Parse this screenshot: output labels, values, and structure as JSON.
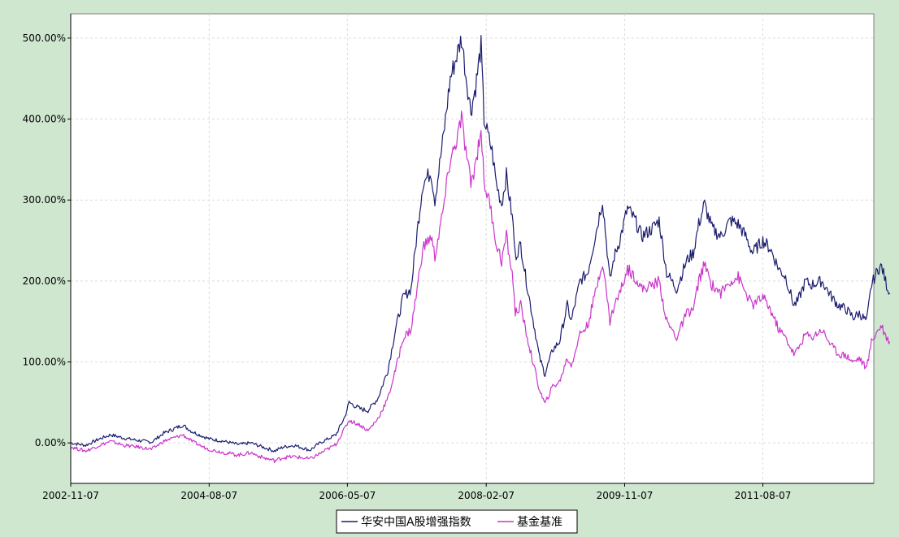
{
  "chart_data": {
    "type": "line",
    "title": "",
    "xlabel": "",
    "ylabel": "",
    "x_tick_labels": [
      "2002-11-07",
      "2004-08-07",
      "2006-05-07",
      "2008-02-07",
      "2009-11-07",
      "2011-08-07"
    ],
    "y_tick_labels": [
      "0.00%",
      "100.00%",
      "200.00%",
      "300.00%",
      "400.00%",
      "500.00%"
    ],
    "y_ticks": [
      0,
      100,
      200,
      300,
      400,
      500
    ],
    "ylim": [
      -50,
      530
    ],
    "xlim": [
      "2002-11-07",
      "2012-12-31"
    ],
    "grid": true,
    "legend_position": "bottom-center",
    "series": [
      {
        "name": "华安中国A股增强指数",
        "color": "#1b1c6e",
        "points": [
          [
            "2002-11-07",
            0
          ],
          [
            "2003-01-15",
            -3
          ],
          [
            "2003-03-20",
            5
          ],
          [
            "2003-05-10",
            10
          ],
          [
            "2003-07-10",
            6
          ],
          [
            "2003-09-15",
            3
          ],
          [
            "2003-11-15",
            1
          ],
          [
            "2004-01-10",
            12
          ],
          [
            "2004-04-07",
            22
          ],
          [
            "2004-05-20",
            14
          ],
          [
            "2004-07-10",
            8
          ],
          [
            "2004-08-07",
            5
          ],
          [
            "2004-10-15",
            2
          ],
          [
            "2004-12-20",
            -2
          ],
          [
            "2005-02-15",
            0
          ],
          [
            "2005-04-10",
            -5
          ],
          [
            "2005-06-05",
            -10
          ],
          [
            "2005-07-15",
            -5
          ],
          [
            "2005-09-05",
            -3
          ],
          [
            "2005-11-15",
            -9
          ],
          [
            "2006-01-01",
            0
          ],
          [
            "2006-03-15",
            10
          ],
          [
            "2006-04-25",
            32
          ],
          [
            "2006-05-15",
            50
          ],
          [
            "2006-07-05",
            42
          ],
          [
            "2006-08-10",
            40
          ],
          [
            "2006-09-25",
            55
          ],
          [
            "2006-11-10",
            90
          ],
          [
            "2006-12-15",
            140
          ],
          [
            "2007-01-20",
            180
          ],
          [
            "2007-02-25",
            190
          ],
          [
            "2007-03-25",
            260
          ],
          [
            "2007-04-20",
            320
          ],
          [
            "2007-05-28",
            335
          ],
          [
            "2007-06-15",
            300
          ],
          [
            "2007-07-25",
            380
          ],
          [
            "2007-08-25",
            450
          ],
          [
            "2007-09-15",
            470
          ],
          [
            "2007-10-16",
            500
          ],
          [
            "2007-11-05",
            455
          ],
          [
            "2007-11-28",
            410
          ],
          [
            "2007-12-20",
            440
          ],
          [
            "2008-01-14",
            490
          ],
          [
            "2008-01-28",
            400
          ],
          [
            "2008-02-15",
            380
          ],
          [
            "2008-03-05",
            360
          ],
          [
            "2008-03-25",
            320
          ],
          [
            "2008-04-18",
            295
          ],
          [
            "2008-05-10",
            330
          ],
          [
            "2008-06-10",
            270
          ],
          [
            "2008-06-20",
            230
          ],
          [
            "2008-07-15",
            245
          ],
          [
            "2008-08-10",
            200
          ],
          [
            "2008-09-18",
            140
          ],
          [
            "2008-10-10",
            105
          ],
          [
            "2008-11-04",
            85
          ],
          [
            "2008-12-10",
            115
          ],
          [
            "2009-01-10",
            125
          ],
          [
            "2009-02-15",
            170
          ],
          [
            "2009-03-05",
            150
          ],
          [
            "2009-04-15",
            200
          ],
          [
            "2009-05-20",
            210
          ],
          [
            "2009-06-20",
            250
          ],
          [
            "2009-07-28",
            300
          ],
          [
            "2009-08-31",
            200
          ],
          [
            "2009-09-20",
            230
          ],
          [
            "2009-10-15",
            250
          ],
          [
            "2009-11-20",
            290
          ],
          [
            "2009-12-25",
            275
          ],
          [
            "2010-01-25",
            255
          ],
          [
            "2010-03-15",
            265
          ],
          [
            "2010-04-15",
            275
          ],
          [
            "2010-05-20",
            210
          ],
          [
            "2010-07-05",
            190
          ],
          [
            "2010-08-20",
            225
          ],
          [
            "2010-09-20",
            235
          ],
          [
            "2010-10-15",
            270
          ],
          [
            "2010-11-10",
            295
          ],
          [
            "2010-12-15",
            265
          ],
          [
            "2011-01-25",
            255
          ],
          [
            "2011-03-10",
            275
          ],
          [
            "2011-04-15",
            270
          ],
          [
            "2011-05-20",
            255
          ],
          [
            "2011-06-20",
            235
          ],
          [
            "2011-08-07",
            250
          ],
          [
            "2011-09-10",
            240
          ],
          [
            "2011-10-20",
            215
          ],
          [
            "2011-11-20",
            205
          ],
          [
            "2011-12-28",
            170
          ],
          [
            "2012-01-15",
            175
          ],
          [
            "2012-02-20",
            200
          ],
          [
            "2012-03-15",
            195
          ],
          [
            "2012-05-05",
            200
          ],
          [
            "2012-06-20",
            180
          ],
          [
            "2012-07-20",
            170
          ],
          [
            "2012-08-25",
            165
          ],
          [
            "2012-09-28",
            155
          ],
          [
            "2012-10-25",
            160
          ],
          [
            "2012-11-28",
            150
          ],
          [
            "2012-12-20",
            195
          ],
          [
            "2013-01-20",
            215
          ],
          [
            "2013-02-05",
            218
          ],
          [
            "2013-02-28",
            195
          ],
          [
            "2013-03-15",
            185
          ]
        ]
      },
      {
        "name": "基金基准",
        "color": "#cc33cc",
        "points": [
          [
            "2002-11-07",
            -5
          ],
          [
            "2003-01-15",
            -10
          ],
          [
            "2003-03-20",
            -3
          ],
          [
            "2003-05-10",
            2
          ],
          [
            "2003-07-10",
            -3
          ],
          [
            "2003-09-15",
            -5
          ],
          [
            "2003-11-15",
            -8
          ],
          [
            "2004-01-10",
            2
          ],
          [
            "2004-04-07",
            10
          ],
          [
            "2004-05-20",
            2
          ],
          [
            "2004-07-10",
            -5
          ],
          [
            "2004-08-07",
            -8
          ],
          [
            "2004-10-15",
            -12
          ],
          [
            "2004-12-20",
            -15
          ],
          [
            "2005-02-15",
            -12
          ],
          [
            "2005-04-10",
            -18
          ],
          [
            "2005-06-05",
            -22
          ],
          [
            "2005-07-15",
            -18
          ],
          [
            "2005-09-05",
            -17
          ],
          [
            "2005-11-15",
            -20
          ],
          [
            "2006-01-01",
            -13
          ],
          [
            "2006-03-15",
            -2
          ],
          [
            "2006-04-25",
            18
          ],
          [
            "2006-05-15",
            28
          ],
          [
            "2006-07-05",
            22
          ],
          [
            "2006-08-10",
            15
          ],
          [
            "2006-09-25",
            30
          ],
          [
            "2006-11-10",
            55
          ],
          [
            "2006-12-15",
            90
          ],
          [
            "2007-01-20",
            130
          ],
          [
            "2007-02-25",
            140
          ],
          [
            "2007-03-25",
            190
          ],
          [
            "2007-04-20",
            240
          ],
          [
            "2007-05-28",
            255
          ],
          [
            "2007-06-15",
            230
          ],
          [
            "2007-07-25",
            290
          ],
          [
            "2007-08-25",
            350
          ],
          [
            "2007-09-15",
            365
          ],
          [
            "2007-10-16",
            400
          ],
          [
            "2007-11-05",
            360
          ],
          [
            "2007-11-28",
            320
          ],
          [
            "2007-12-20",
            345
          ],
          [
            "2008-01-14",
            390
          ],
          [
            "2008-01-28",
            320
          ],
          [
            "2008-02-15",
            305
          ],
          [
            "2008-03-05",
            280
          ],
          [
            "2008-03-25",
            245
          ],
          [
            "2008-04-18",
            225
          ],
          [
            "2008-05-10",
            255
          ],
          [
            "2008-06-10",
            200
          ],
          [
            "2008-06-20",
            160
          ],
          [
            "2008-07-15",
            170
          ],
          [
            "2008-08-10",
            135
          ],
          [
            "2008-09-18",
            90
          ],
          [
            "2008-10-10",
            65
          ],
          [
            "2008-11-04",
            48
          ],
          [
            "2008-12-10",
            70
          ],
          [
            "2009-01-10",
            75
          ],
          [
            "2009-02-15",
            105
          ],
          [
            "2009-03-05",
            95
          ],
          [
            "2009-04-15",
            135
          ],
          [
            "2009-05-20",
            145
          ],
          [
            "2009-06-20",
            180
          ],
          [
            "2009-07-28",
            225
          ],
          [
            "2009-08-31",
            150
          ],
          [
            "2009-09-20",
            170
          ],
          [
            "2009-10-15",
            185
          ],
          [
            "2009-11-20",
            215
          ],
          [
            "2009-12-25",
            205
          ],
          [
            "2010-01-25",
            190
          ],
          [
            "2010-03-15",
            195
          ],
          [
            "2010-04-15",
            200
          ],
          [
            "2010-05-20",
            150
          ],
          [
            "2010-07-05",
            130
          ],
          [
            "2010-08-20",
            160
          ],
          [
            "2010-09-20",
            165
          ],
          [
            "2010-10-15",
            200
          ],
          [
            "2010-11-10",
            220
          ],
          [
            "2010-12-15",
            195
          ],
          [
            "2011-01-25",
            185
          ],
          [
            "2011-03-10",
            200
          ],
          [
            "2011-04-15",
            205
          ],
          [
            "2011-05-20",
            185
          ],
          [
            "2011-06-20",
            170
          ],
          [
            "2011-08-07",
            180
          ],
          [
            "2011-09-10",
            165
          ],
          [
            "2011-10-20",
            140
          ],
          [
            "2011-11-20",
            130
          ],
          [
            "2011-12-28",
            110
          ],
          [
            "2012-01-15",
            115
          ],
          [
            "2012-02-20",
            135
          ],
          [
            "2012-03-15",
            130
          ],
          [
            "2012-05-05",
            140
          ],
          [
            "2012-06-20",
            120
          ],
          [
            "2012-07-20",
            110
          ],
          [
            "2012-08-25",
            108
          ],
          [
            "2012-09-28",
            100
          ],
          [
            "2012-10-25",
            105
          ],
          [
            "2012-11-28",
            92
          ],
          [
            "2012-12-20",
            125
          ],
          [
            "2013-01-20",
            140
          ],
          [
            "2013-02-05",
            145
          ],
          [
            "2013-02-28",
            130
          ],
          [
            "2013-03-15",
            125
          ]
        ]
      }
    ]
  },
  "colors": {
    "page_background": "#cfe6cf",
    "plot_background": "#ffffff",
    "grid": "#dcdcdc",
    "axis": "#000000"
  }
}
